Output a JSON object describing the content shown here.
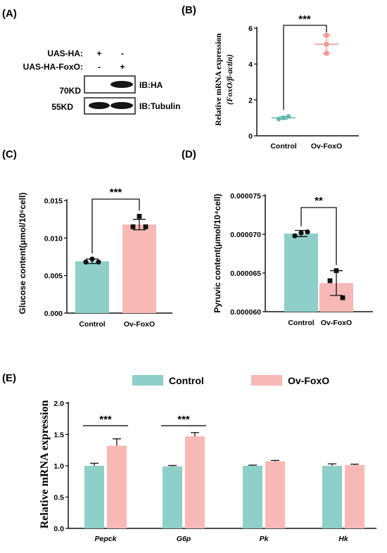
{
  "colors": {
    "control": "#8fcfc9",
    "ovfoxo": "#f8b9b6",
    "control_dark": "#5fb5ad",
    "ovfoxo_dark": "#ef9995"
  },
  "panelA": {
    "label": "(A)",
    "rows": [
      {
        "name": "UAS-HA:",
        "signs": [
          "+",
          "-"
        ]
      },
      {
        "name": "UAS-HA-FoxO:",
        "signs": [
          "-",
          "+"
        ]
      }
    ],
    "blots": [
      {
        "kd": "70KD",
        "ib": "IB:HA"
      },
      {
        "kd": "55KD",
        "ib": "IB:Tubulin"
      }
    ]
  },
  "chart_data": [
    {
      "panel": "(B)",
      "type": "scatter",
      "ylabel_line1": "Relative mRNA expression",
      "ylabel_line2": "(FoxO/β-actin)",
      "categories": [
        "Control",
        "Ov-FoxO"
      ],
      "ylim": [
        0,
        6
      ],
      "yticks": [
        "0",
        "2",
        "4",
        "6"
      ],
      "means": [
        1.0,
        5.1
      ],
      "errors": [
        0.08,
        0.5
      ],
      "points": [
        [
          1.0,
          1.08,
          0.93
        ],
        [
          5.6,
          4.6,
          5.1
        ]
      ],
      "significance": "***"
    },
    {
      "panel": "(C)",
      "type": "bar",
      "ylabel": "Glucose content(μmol/10⁶cell)",
      "categories": [
        "Control",
        "Ov-FoxO"
      ],
      "ylim": [
        0,
        0.015
      ],
      "yticks": [
        "0.000",
        "0.005",
        "0.010",
        "0.015"
      ],
      "values": [
        0.0069,
        0.0118
      ],
      "errors": [
        0.0003,
        0.0007
      ],
      "points": [
        [
          0.0072,
          0.0068,
          0.0068
        ],
        [
          0.0129,
          0.0115,
          0.0115
        ]
      ],
      "significance": "***"
    },
    {
      "panel": "(D)",
      "type": "bar",
      "ylabel": "Pyruvic content(μmol/10⁴cell)",
      "categories": [
        "Control",
        "Ov-FoxO"
      ],
      "ylim": [
        6e-05,
        7.5e-05
      ],
      "yticks": [
        "0.000060",
        "0.000065",
        "0.000070",
        "0.000075"
      ],
      "values": [
        7.01e-05,
        6.37e-05
      ],
      "errors": [
        4e-07,
        1.6e-06
      ],
      "points": [
        [
          7.02e-05,
          6.98e-05,
          7.03e-05
        ],
        [
          6.53e-05,
          6.4e-05,
          6.18e-05
        ]
      ],
      "significance": "**"
    },
    {
      "panel": "(E)",
      "type": "bar",
      "ylabel": "Relative mRNA expression",
      "categories": [
        "Pepck",
        "G6p",
        "Pk",
        "Hk"
      ],
      "ylim": [
        0,
        2.0
      ],
      "yticks": [
        "0.0",
        "0.5",
        "1.0",
        "1.5",
        "2.0"
      ],
      "legend": "top",
      "series": [
        {
          "name": "Control",
          "values": [
            1.0,
            0.99,
            1.0,
            1.0
          ],
          "errors": [
            0.04,
            0.015,
            0.01,
            0.03
          ]
        },
        {
          "name": "Ov-FoxO",
          "values": [
            1.32,
            1.47,
            1.07,
            1.01
          ],
          "errors": [
            0.11,
            0.06,
            0.015,
            0.015
          ]
        }
      ],
      "significance": [
        "***",
        "***",
        "",
        ""
      ]
    }
  ]
}
